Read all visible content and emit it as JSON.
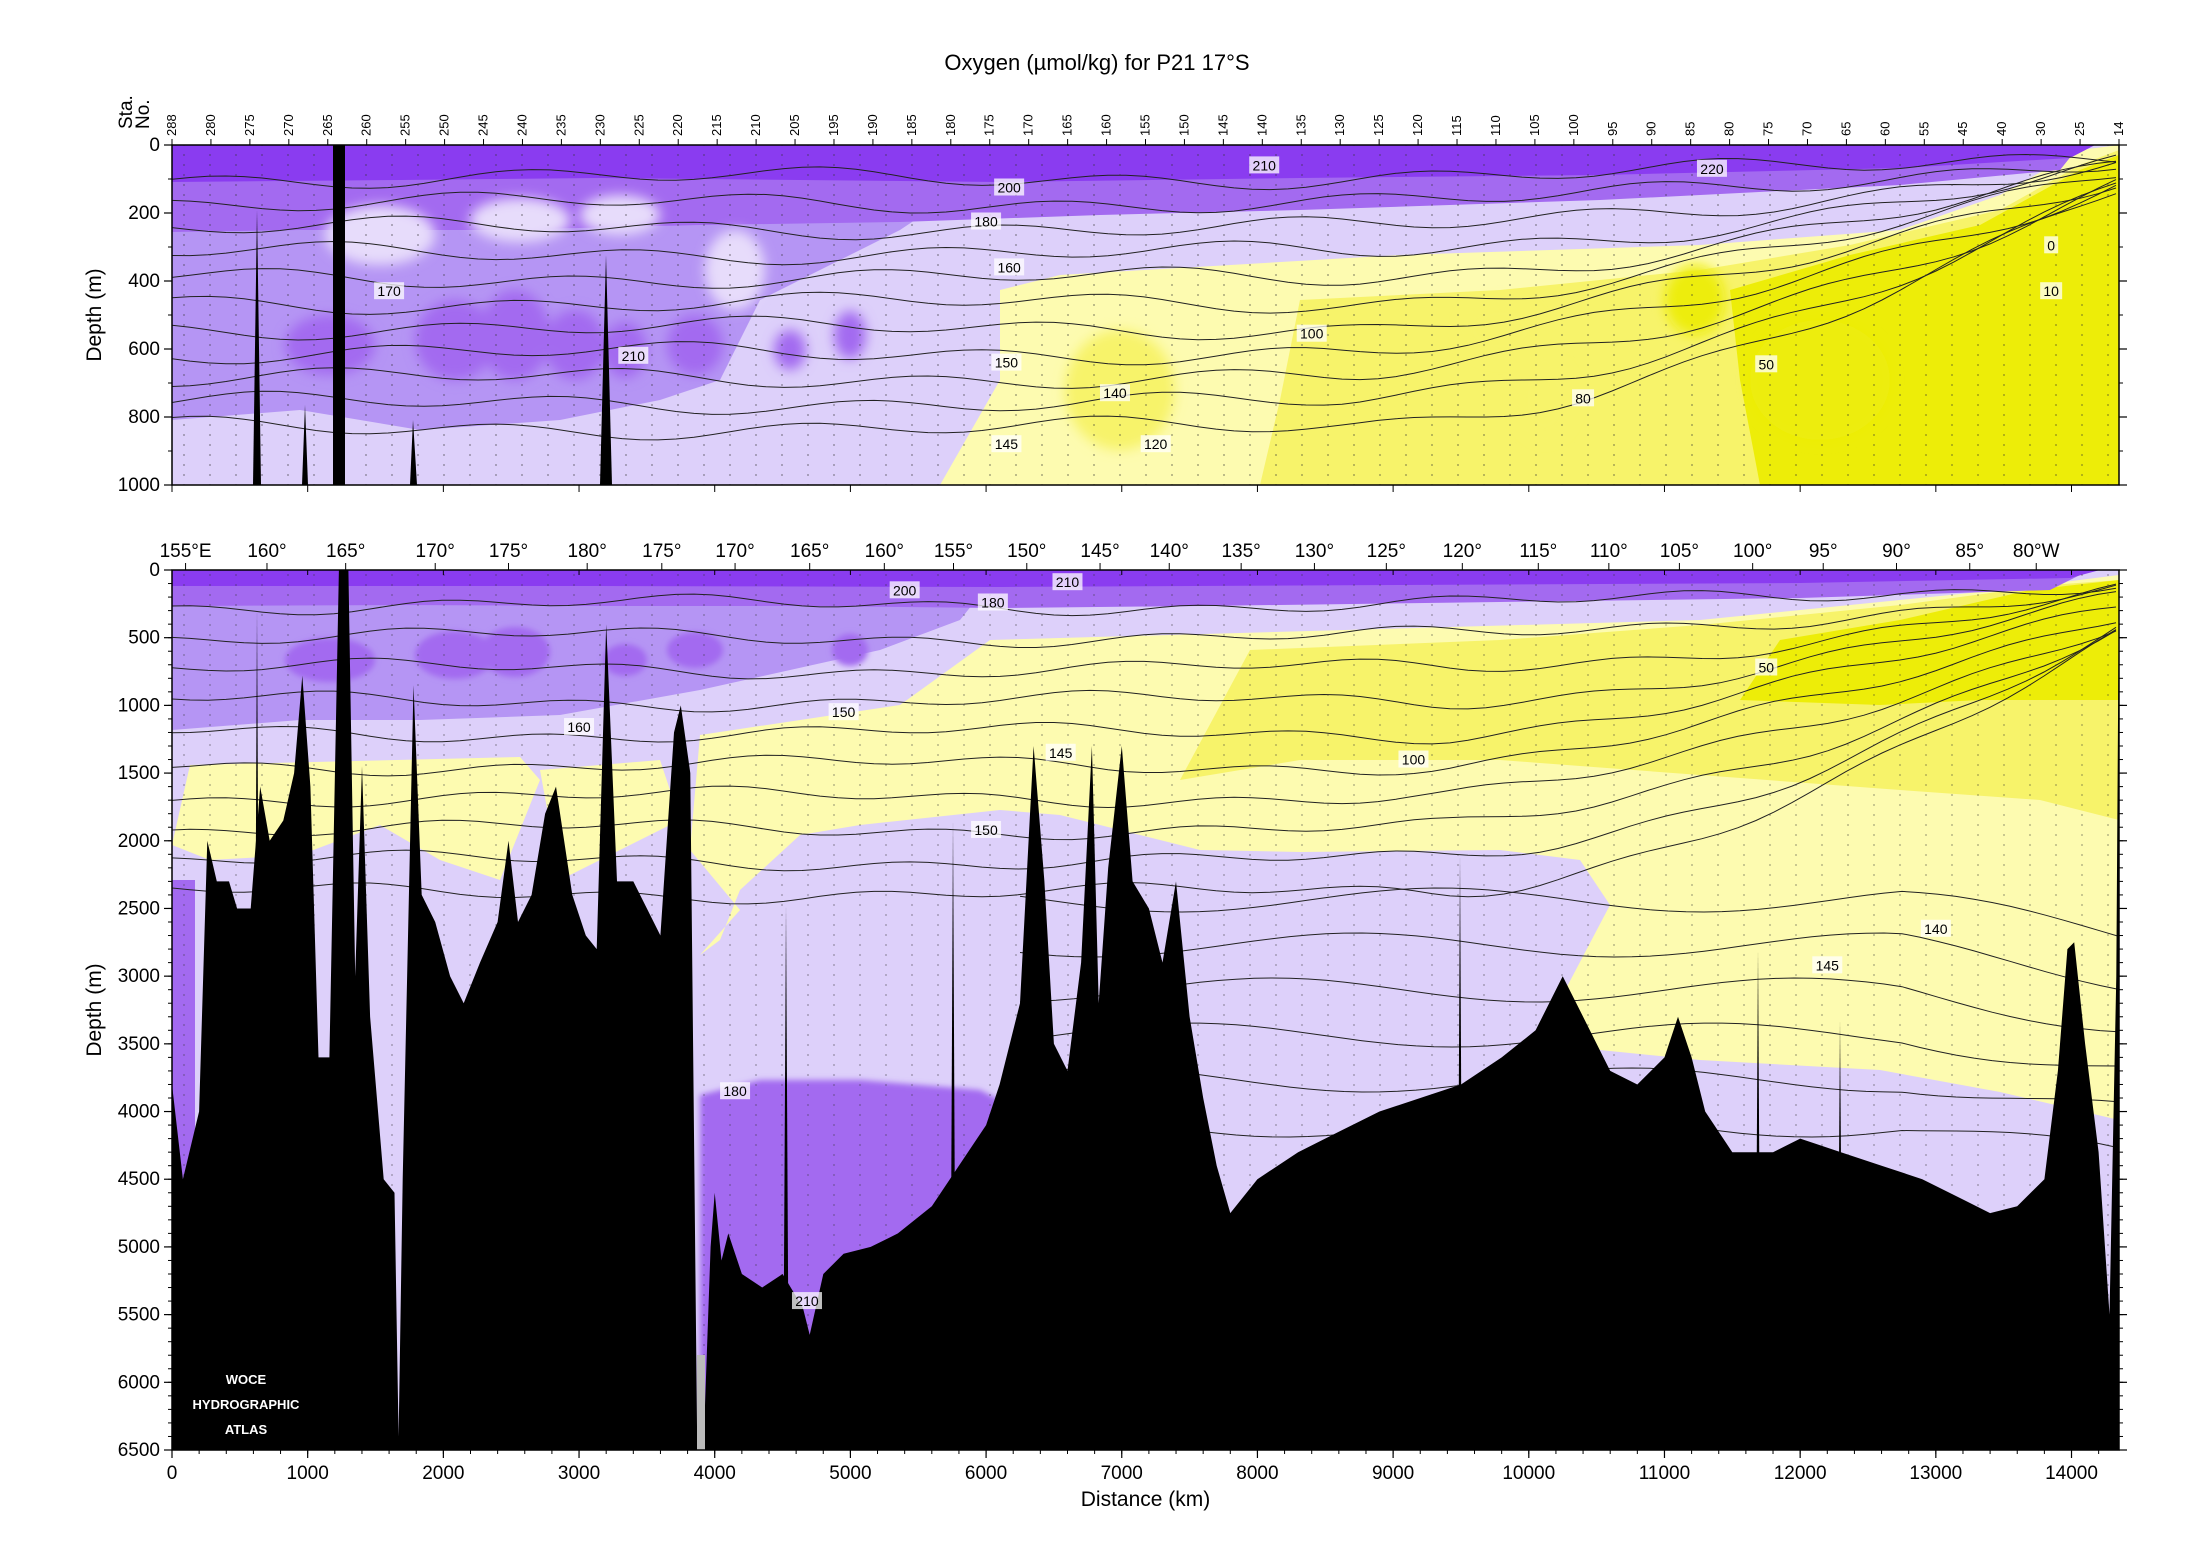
{
  "title": "Oxygen (µmol/kg) for P21 17°S",
  "colors": {
    "purple_dark": "#8a3cf0",
    "purple_mid": "#a36af0",
    "purple_light": "#cbb0f5",
    "lavender": "#ddd0fa",
    "yellow_pale": "#fdfbb0",
    "yellow": "#f7f36a",
    "yellow_bright": "#eded08",
    "bathymetry": "#000000"
  },
  "watermark": {
    "lines": [
      "WOCE",
      "HYDROGRAPHIC",
      "ATLAS"
    ]
  },
  "chart_data": [
    {
      "type": "section",
      "name": "upper",
      "ylabel": "Depth (m)",
      "ylim": [
        0,
        1000
      ],
      "xlim": [
        0,
        14350
      ],
      "y_ticks": [
        0,
        200,
        400,
        600,
        800,
        1000
      ],
      "station_axis_label": [
        "Sta.",
        "No."
      ],
      "stations": [
        "288",
        "280",
        "275",
        "270",
        "265",
        "260",
        "255",
        "250",
        "245",
        "240",
        "235",
        "230",
        "225",
        "220",
        "215",
        "210",
        "205",
        "195",
        "190",
        "185",
        "180",
        "175",
        "170",
        "165",
        "160",
        "155",
        "150",
        "145",
        "140",
        "135",
        "130",
        "125",
        "120",
        "115",
        "110",
        "105",
        "100",
        "95",
        "90",
        "85",
        "80",
        "75",
        "70",
        "65",
        "60",
        "55",
        "45",
        "40",
        "30",
        "25",
        "14"
      ],
      "contour_labels": [
        {
          "text": "210",
          "x": 8050,
          "y": 60
        },
        {
          "text": "220",
          "x": 11350,
          "y": 70
        },
        {
          "text": "200",
          "x": 6170,
          "y": 125
        },
        {
          "text": "180",
          "x": 6000,
          "y": 225
        },
        {
          "text": "160",
          "x": 6170,
          "y": 360
        },
        {
          "text": "170",
          "x": 1600,
          "y": 430
        },
        {
          "text": "210",
          "x": 3400,
          "y": 620
        },
        {
          "text": "150",
          "x": 6150,
          "y": 640
        },
        {
          "text": "100",
          "x": 8400,
          "y": 555
        },
        {
          "text": "50",
          "x": 11750,
          "y": 645
        },
        {
          "text": "140",
          "x": 6950,
          "y": 730
        },
        {
          "text": "80",
          "x": 10400,
          "y": 745
        },
        {
          "text": "145",
          "x": 6150,
          "y": 880
        },
        {
          "text": "120",
          "x": 7250,
          "y": 880
        },
        {
          "text": "0",
          "x": 13850,
          "y": 295
        },
        {
          "text": "10",
          "x": 13850,
          "y": 430
        }
      ]
    },
    {
      "type": "section",
      "name": "full-depth",
      "ylabel": "Depth (m)",
      "xlabel": "Distance (km)",
      "ylim": [
        0,
        6500
      ],
      "xlim": [
        0,
        14350
      ],
      "x_ticks": [
        0,
        1000,
        2000,
        3000,
        4000,
        5000,
        6000,
        7000,
        8000,
        9000,
        10000,
        11000,
        12000,
        13000,
        14000
      ],
      "y_ticks": [
        0,
        500,
        1000,
        1500,
        2000,
        2500,
        3000,
        3500,
        4000,
        4500,
        5000,
        5500,
        6000,
        6500
      ],
      "lon_labels": [
        {
          "text": "155°E",
          "x": 100
        },
        {
          "text": "160°",
          "x": 700
        },
        {
          "text": "165°",
          "x": 1280
        },
        {
          "text": "170°",
          "x": 1940
        },
        {
          "text": "175°",
          "x": 2480
        },
        {
          "text": "180°",
          "x": 3060
        },
        {
          "text": "175°",
          "x": 3610
        },
        {
          "text": "170°",
          "x": 4150
        },
        {
          "text": "165°",
          "x": 4700
        },
        {
          "text": "160°",
          "x": 5250
        },
        {
          "text": "155°",
          "x": 5760
        },
        {
          "text": "150°",
          "x": 6300
        },
        {
          "text": "145°",
          "x": 6840
        },
        {
          "text": "140°",
          "x": 7350
        },
        {
          "text": "135°",
          "x": 7880
        },
        {
          "text": "130°",
          "x": 8420
        },
        {
          "text": "125°",
          "x": 8950
        },
        {
          "text": "120°",
          "x": 9510
        },
        {
          "text": "115°",
          "x": 10070
        },
        {
          "text": "110°",
          "x": 10590
        },
        {
          "text": "105°",
          "x": 11110
        },
        {
          "text": "100°",
          "x": 11650
        },
        {
          "text": "95°",
          "x": 12170
        },
        {
          "text": "90°",
          "x": 12710
        },
        {
          "text": "85°",
          "x": 13250
        },
        {
          "text": "80°W",
          "x": 13740
        }
      ],
      "bathymetry": [
        [
          0,
          3800
        ],
        [
          80,
          4500
        ],
        [
          200,
          4000
        ],
        [
          260,
          2000
        ],
        [
          330,
          2300
        ],
        [
          420,
          2300
        ],
        [
          480,
          2500
        ],
        [
          580,
          2500
        ],
        [
          650,
          1600
        ],
        [
          720,
          2000
        ],
        [
          820,
          1850
        ],
        [
          900,
          1500
        ],
        [
          960,
          780
        ],
        [
          1020,
          1600
        ],
        [
          1080,
          3600
        ],
        [
          1160,
          3600
        ],
        [
          1230,
          0
        ],
        [
          1300,
          0
        ],
        [
          1350,
          3000
        ],
        [
          1400,
          1450
        ],
        [
          1460,
          3300
        ],
        [
          1560,
          4500
        ],
        [
          1640,
          4600
        ],
        [
          1670,
          6400
        ],
        [
          1700,
          4500
        ],
        [
          1780,
          850
        ],
        [
          1840,
          2400
        ],
        [
          1940,
          2600
        ],
        [
          2050,
          3000
        ],
        [
          2150,
          3200
        ],
        [
          2270,
          2900
        ],
        [
          2400,
          2600
        ],
        [
          2480,
          2000
        ],
        [
          2550,
          2600
        ],
        [
          2650,
          2400
        ],
        [
          2750,
          1800
        ],
        [
          2830,
          1600
        ],
        [
          2950,
          2400
        ],
        [
          3050,
          2700
        ],
        [
          3130,
          2800
        ],
        [
          3200,
          400
        ],
        [
          3280,
          2300
        ],
        [
          3400,
          2300
        ],
        [
          3500,
          2500
        ],
        [
          3600,
          2700
        ],
        [
          3700,
          1200
        ],
        [
          3750,
          1000
        ],
        [
          3820,
          1500
        ],
        [
          3870,
          6400
        ],
        [
          3920,
          6400
        ],
        [
          3970,
          5000
        ],
        [
          4000,
          4600
        ],
        [
          4050,
          5100
        ],
        [
          4100,
          4900
        ],
        [
          4200,
          5200
        ],
        [
          4350,
          5300
        ],
        [
          4500,
          5200
        ],
        [
          4650,
          5450
        ],
        [
          4700,
          5650
        ],
        [
          4800,
          5200
        ],
        [
          4950,
          5050
        ],
        [
          5150,
          5000
        ],
        [
          5350,
          4900
        ],
        [
          5600,
          4700
        ],
        [
          5800,
          4400
        ],
        [
          6000,
          4100
        ],
        [
          6100,
          3800
        ],
        [
          6250,
          3200
        ],
        [
          6350,
          1300
        ],
        [
          6430,
          2300
        ],
        [
          6500,
          3500
        ],
        [
          6600,
          3700
        ],
        [
          6700,
          2900
        ],
        [
          6780,
          1300
        ],
        [
          6830,
          3200
        ],
        [
          6900,
          2200
        ],
        [
          7000,
          1300
        ],
        [
          7080,
          2300
        ],
        [
          7200,
          2500
        ],
        [
          7300,
          2900
        ],
        [
          7400,
          2300
        ],
        [
          7500,
          3300
        ],
        [
          7600,
          3900
        ],
        [
          7700,
          4400
        ],
        [
          7800,
          4750
        ],
        [
          8000,
          4500
        ],
        [
          8300,
          4300
        ],
        [
          8600,
          4150
        ],
        [
          8900,
          4000
        ],
        [
          9200,
          3900
        ],
        [
          9500,
          3800
        ],
        [
          9800,
          3600
        ],
        [
          10050,
          3400
        ],
        [
          10250,
          3000
        ],
        [
          10400,
          3300
        ],
        [
          10600,
          3700
        ],
        [
          10800,
          3800
        ],
        [
          11000,
          3600
        ],
        [
          11100,
          3300
        ],
        [
          11200,
          3600
        ],
        [
          11300,
          4000
        ],
        [
          11500,
          4300
        ],
        [
          11800,
          4300
        ],
        [
          12000,
          4200
        ],
        [
          12300,
          4300
        ],
        [
          12600,
          4400
        ],
        [
          12900,
          4500
        ],
        [
          13200,
          4650
        ],
        [
          13400,
          4750
        ],
        [
          13600,
          4700
        ],
        [
          13800,
          4500
        ],
        [
          13900,
          3700
        ],
        [
          13970,
          2800
        ],
        [
          14020,
          2750
        ],
        [
          14100,
          3500
        ],
        [
          14200,
          4300
        ],
        [
          14280,
          5500
        ],
        [
          14330,
          3000
        ],
        [
          14350,
          0
        ]
      ],
      "contour_labels": [
        {
          "text": "210",
          "x": 6600,
          "y": 90
        },
        {
          "text": "200",
          "x": 5400,
          "y": 150
        },
        {
          "text": "180",
          "x": 6050,
          "y": 240
        },
        {
          "text": "50",
          "x": 11750,
          "y": 720
        },
        {
          "text": "160",
          "x": 3000,
          "y": 1160
        },
        {
          "text": "150",
          "x": 4950,
          "y": 1050
        },
        {
          "text": "145",
          "x": 6550,
          "y": 1350
        },
        {
          "text": "100",
          "x": 9150,
          "y": 1400
        },
        {
          "text": "150",
          "x": 6000,
          "y": 1920
        },
        {
          "text": "140",
          "x": 13000,
          "y": 2650
        },
        {
          "text": "145",
          "x": 12200,
          "y": 2920
        },
        {
          "text": "180",
          "x": 4150,
          "y": 3850
        },
        {
          "text": "210",
          "x": 4680,
          "y": 5400
        }
      ]
    }
  ]
}
